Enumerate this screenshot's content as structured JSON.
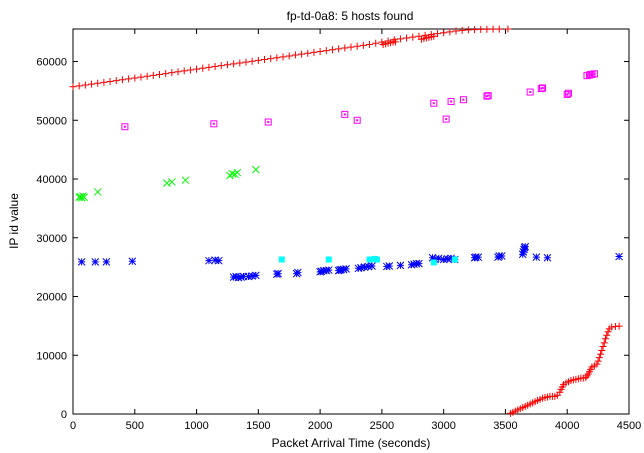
{
  "chart_data": {
    "type": "scatter",
    "title": "fp-td-0a8: 5 hosts found",
    "xlabel": "Packet Arrival Time (seconds)",
    "ylabel": "IP id value",
    "xlim": [
      0,
      4500
    ],
    "ylim": [
      0,
      65536
    ],
    "xticks": [
      {
        "value": 0,
        "label": "0"
      },
      {
        "value": 500,
        "label": "500"
      },
      {
        "value": 1000,
        "label": "1000"
      },
      {
        "value": 1500,
        "label": "1500"
      },
      {
        "value": 2000,
        "label": "2000"
      },
      {
        "value": 2500,
        "label": "2500"
      },
      {
        "value": 3000,
        "label": "3000"
      },
      {
        "value": 3500,
        "label": "3500"
      },
      {
        "value": 4000,
        "label": "4000"
      },
      {
        "value": 4500,
        "label": "4500"
      }
    ],
    "yticks": [
      {
        "value": 0,
        "label": "0"
      },
      {
        "value": 10000,
        "label": "10000"
      },
      {
        "value": 20000,
        "label": "20000"
      },
      {
        "value": 30000,
        "label": "30000"
      },
      {
        "value": 40000,
        "label": "40000"
      },
      {
        "value": 50000,
        "label": "50000"
      },
      {
        "value": 60000,
        "label": "60000"
      }
    ],
    "grid": false,
    "legend": "none",
    "series": [
      {
        "marker": "plus",
        "color": "#ff0000",
        "points": [
          [
            0,
            55700
          ],
          [
            50,
            55850
          ],
          [
            100,
            56000
          ],
          [
            150,
            56150
          ],
          [
            200,
            56300
          ],
          [
            250,
            56450
          ],
          [
            300,
            56600
          ],
          [
            350,
            56750
          ],
          [
            400,
            56900
          ],
          [
            450,
            57050
          ],
          [
            500,
            57200
          ],
          [
            550,
            57350
          ],
          [
            600,
            57500
          ],
          [
            650,
            57650
          ],
          [
            700,
            57800
          ],
          [
            750,
            57950
          ],
          [
            800,
            58100
          ],
          [
            850,
            58250
          ],
          [
            900,
            58400
          ],
          [
            950,
            58550
          ],
          [
            1000,
            58700
          ],
          [
            1050,
            58850
          ],
          [
            1100,
            59000
          ],
          [
            1150,
            59150
          ],
          [
            1200,
            59300
          ],
          [
            1250,
            59450
          ],
          [
            1300,
            59600
          ],
          [
            1350,
            59750
          ],
          [
            1400,
            59900
          ],
          [
            1450,
            60050
          ],
          [
            1500,
            60200
          ],
          [
            1550,
            60350
          ],
          [
            1600,
            60500
          ],
          [
            1650,
            60650
          ],
          [
            1700,
            60800
          ],
          [
            1750,
            60950
          ],
          [
            1800,
            61100
          ],
          [
            1850,
            61250
          ],
          [
            1900,
            61400
          ],
          [
            1950,
            61550
          ],
          [
            2000,
            61700
          ],
          [
            2050,
            61850
          ],
          [
            2100,
            62000
          ],
          [
            2150,
            62150
          ],
          [
            2200,
            62300
          ],
          [
            2250,
            62450
          ],
          [
            2300,
            62600
          ],
          [
            2350,
            62750
          ],
          [
            2400,
            62900
          ],
          [
            2450,
            63100
          ],
          [
            2500,
            63300
          ],
          [
            2550,
            63500
          ],
          [
            2600,
            63700
          ],
          [
            2650,
            63850
          ],
          [
            2700,
            64000
          ],
          [
            2750,
            64150
          ],
          [
            2800,
            64300
          ],
          [
            2850,
            64450
          ],
          [
            2900,
            64600
          ],
          [
            2950,
            64750
          ],
          [
            3000,
            64900
          ],
          [
            3050,
            65050
          ],
          [
            3100,
            65200
          ],
          [
            3150,
            65300
          ],
          [
            3200,
            65380
          ],
          [
            3250,
            65440
          ],
          [
            3300,
            65480
          ],
          [
            3350,
            65500
          ],
          [
            3400,
            65510
          ],
          [
            3450,
            65520
          ],
          [
            3520,
            65530
          ],
          [
            2510,
            62900
          ],
          [
            2530,
            63000
          ],
          [
            2550,
            63100
          ],
          [
            2570,
            63200
          ],
          [
            2590,
            63300
          ],
          [
            2610,
            63350
          ],
          [
            2820,
            63800
          ],
          [
            2840,
            63900
          ],
          [
            2860,
            64000
          ],
          [
            2880,
            64100
          ],
          [
            2900,
            64200
          ],
          [
            2920,
            64300
          ],
          [
            3540,
            100
          ],
          [
            3560,
            300
          ],
          [
            3580,
            500
          ],
          [
            3600,
            700
          ],
          [
            3620,
            900
          ],
          [
            3640,
            1100
          ],
          [
            3660,
            1300
          ],
          [
            3680,
            1500
          ],
          [
            3700,
            1700
          ],
          [
            3720,
            1900
          ],
          [
            3740,
            2100
          ],
          [
            3760,
            2300
          ],
          [
            3780,
            2500
          ],
          [
            3800,
            2700
          ],
          [
            3820,
            2800
          ],
          [
            3840,
            2900
          ],
          [
            3860,
            3000
          ],
          [
            3880,
            3000
          ],
          [
            3900,
            3000
          ],
          [
            3920,
            3200
          ],
          [
            3940,
            3700
          ],
          [
            3950,
            4200
          ],
          [
            3960,
            4600
          ],
          [
            3970,
            5000
          ],
          [
            3990,
            5300
          ],
          [
            4010,
            5500
          ],
          [
            4030,
            5700
          ],
          [
            4050,
            5800
          ],
          [
            4070,
            5900
          ],
          [
            4090,
            6000
          ],
          [
            4110,
            6100
          ],
          [
            4130,
            6100
          ],
          [
            4150,
            6200
          ],
          [
            4160,
            6500
          ],
          [
            4170,
            6800
          ],
          [
            4180,
            7200
          ],
          [
            4190,
            7600
          ],
          [
            4200,
            8000
          ],
          [
            4220,
            8200
          ],
          [
            4240,
            8500
          ],
          [
            4250,
            9000
          ],
          [
            4260,
            9600
          ],
          [
            4270,
            10200
          ],
          [
            4280,
            10800
          ],
          [
            4290,
            11500
          ],
          [
            4300,
            12100
          ],
          [
            4310,
            12800
          ],
          [
            4320,
            13400
          ],
          [
            4330,
            14000
          ],
          [
            4340,
            14500
          ],
          [
            4360,
            14800
          ],
          [
            4390,
            14900
          ],
          [
            4420,
            14950
          ]
        ]
      },
      {
        "marker": "square-open",
        "color": "#ff00ff",
        "points": [
          [
            420,
            48900
          ],
          [
            1140,
            49400
          ],
          [
            1580,
            49700
          ],
          [
            2200,
            51000
          ],
          [
            2300,
            50000
          ],
          [
            2920,
            52900
          ],
          [
            3020,
            50200
          ],
          [
            3060,
            53200
          ],
          [
            3160,
            53500
          ],
          [
            3350,
            54100
          ],
          [
            3360,
            54200
          ],
          [
            3700,
            54800
          ],
          [
            3790,
            55400
          ],
          [
            3800,
            55500
          ],
          [
            4000,
            54400
          ],
          [
            4010,
            54600
          ],
          [
            4160,
            57600
          ],
          [
            4180,
            57700
          ],
          [
            4190,
            57800
          ],
          [
            4200,
            57800
          ],
          [
            4220,
            57900
          ]
        ]
      },
      {
        "marker": "cross",
        "color": "#00ff00",
        "points": [
          [
            50,
            36900
          ],
          [
            60,
            37000
          ],
          [
            70,
            36800
          ],
          [
            80,
            37100
          ],
          [
            90,
            36900
          ],
          [
            200,
            37800
          ],
          [
            760,
            39300
          ],
          [
            800,
            39500
          ],
          [
            910,
            39800
          ],
          [
            1270,
            40600
          ],
          [
            1290,
            40900
          ],
          [
            1310,
            40800
          ],
          [
            1330,
            41100
          ],
          [
            1480,
            41600
          ]
        ]
      },
      {
        "marker": "star",
        "color": "#0000ff",
        "points": [
          [
            70,
            25900
          ],
          [
            180,
            25900
          ],
          [
            270,
            25900
          ],
          [
            480,
            26000
          ],
          [
            1100,
            26100
          ],
          [
            1150,
            26200
          ],
          [
            1180,
            26100
          ],
          [
            1300,
            23300
          ],
          [
            1320,
            23400
          ],
          [
            1340,
            23200
          ],
          [
            1360,
            23300
          ],
          [
            1380,
            23400
          ],
          [
            1420,
            23400
          ],
          [
            1450,
            23500
          ],
          [
            1480,
            23600
          ],
          [
            1650,
            23800
          ],
          [
            1660,
            23900
          ],
          [
            1810,
            23900
          ],
          [
            1820,
            24100
          ],
          [
            2000,
            24200
          ],
          [
            2010,
            24300
          ],
          [
            2030,
            24400
          ],
          [
            2050,
            24400
          ],
          [
            2070,
            24500
          ],
          [
            2150,
            24400
          ],
          [
            2160,
            24500
          ],
          [
            2170,
            24600
          ],
          [
            2190,
            24600
          ],
          [
            2210,
            24700
          ],
          [
            2310,
            24800
          ],
          [
            2330,
            24900
          ],
          [
            2360,
            25000
          ],
          [
            2390,
            25100
          ],
          [
            2420,
            25200
          ],
          [
            2540,
            25100
          ],
          [
            2560,
            25200
          ],
          [
            2650,
            25300
          ],
          [
            2740,
            25400
          ],
          [
            2760,
            25500
          ],
          [
            2780,
            25600
          ],
          [
            2800,
            25600
          ],
          [
            2910,
            26600
          ],
          [
            2930,
            26300
          ],
          [
            2960,
            26500
          ],
          [
            3000,
            26300
          ],
          [
            3030,
            26400
          ],
          [
            3060,
            26500
          ],
          [
            3090,
            26300
          ],
          [
            3250,
            26600
          ],
          [
            3260,
            26700
          ],
          [
            3280,
            26700
          ],
          [
            3440,
            26700
          ],
          [
            3450,
            26900
          ],
          [
            3470,
            26900
          ],
          [
            3640,
            27200
          ],
          [
            3645,
            27600
          ],
          [
            3650,
            28000
          ],
          [
            3655,
            28300
          ],
          [
            3660,
            28500
          ],
          [
            3750,
            26700
          ],
          [
            3840,
            26600
          ],
          [
            4420,
            26800
          ]
        ]
      },
      {
        "marker": "square-filled",
        "color": "#00ffff",
        "points": [
          [
            1690,
            26300
          ],
          [
            2070,
            26300
          ],
          [
            2400,
            26300
          ],
          [
            2440,
            26400
          ],
          [
            2460,
            26300
          ],
          [
            2920,
            25800
          ],
          [
            3090,
            26300
          ]
        ]
      }
    ]
  }
}
